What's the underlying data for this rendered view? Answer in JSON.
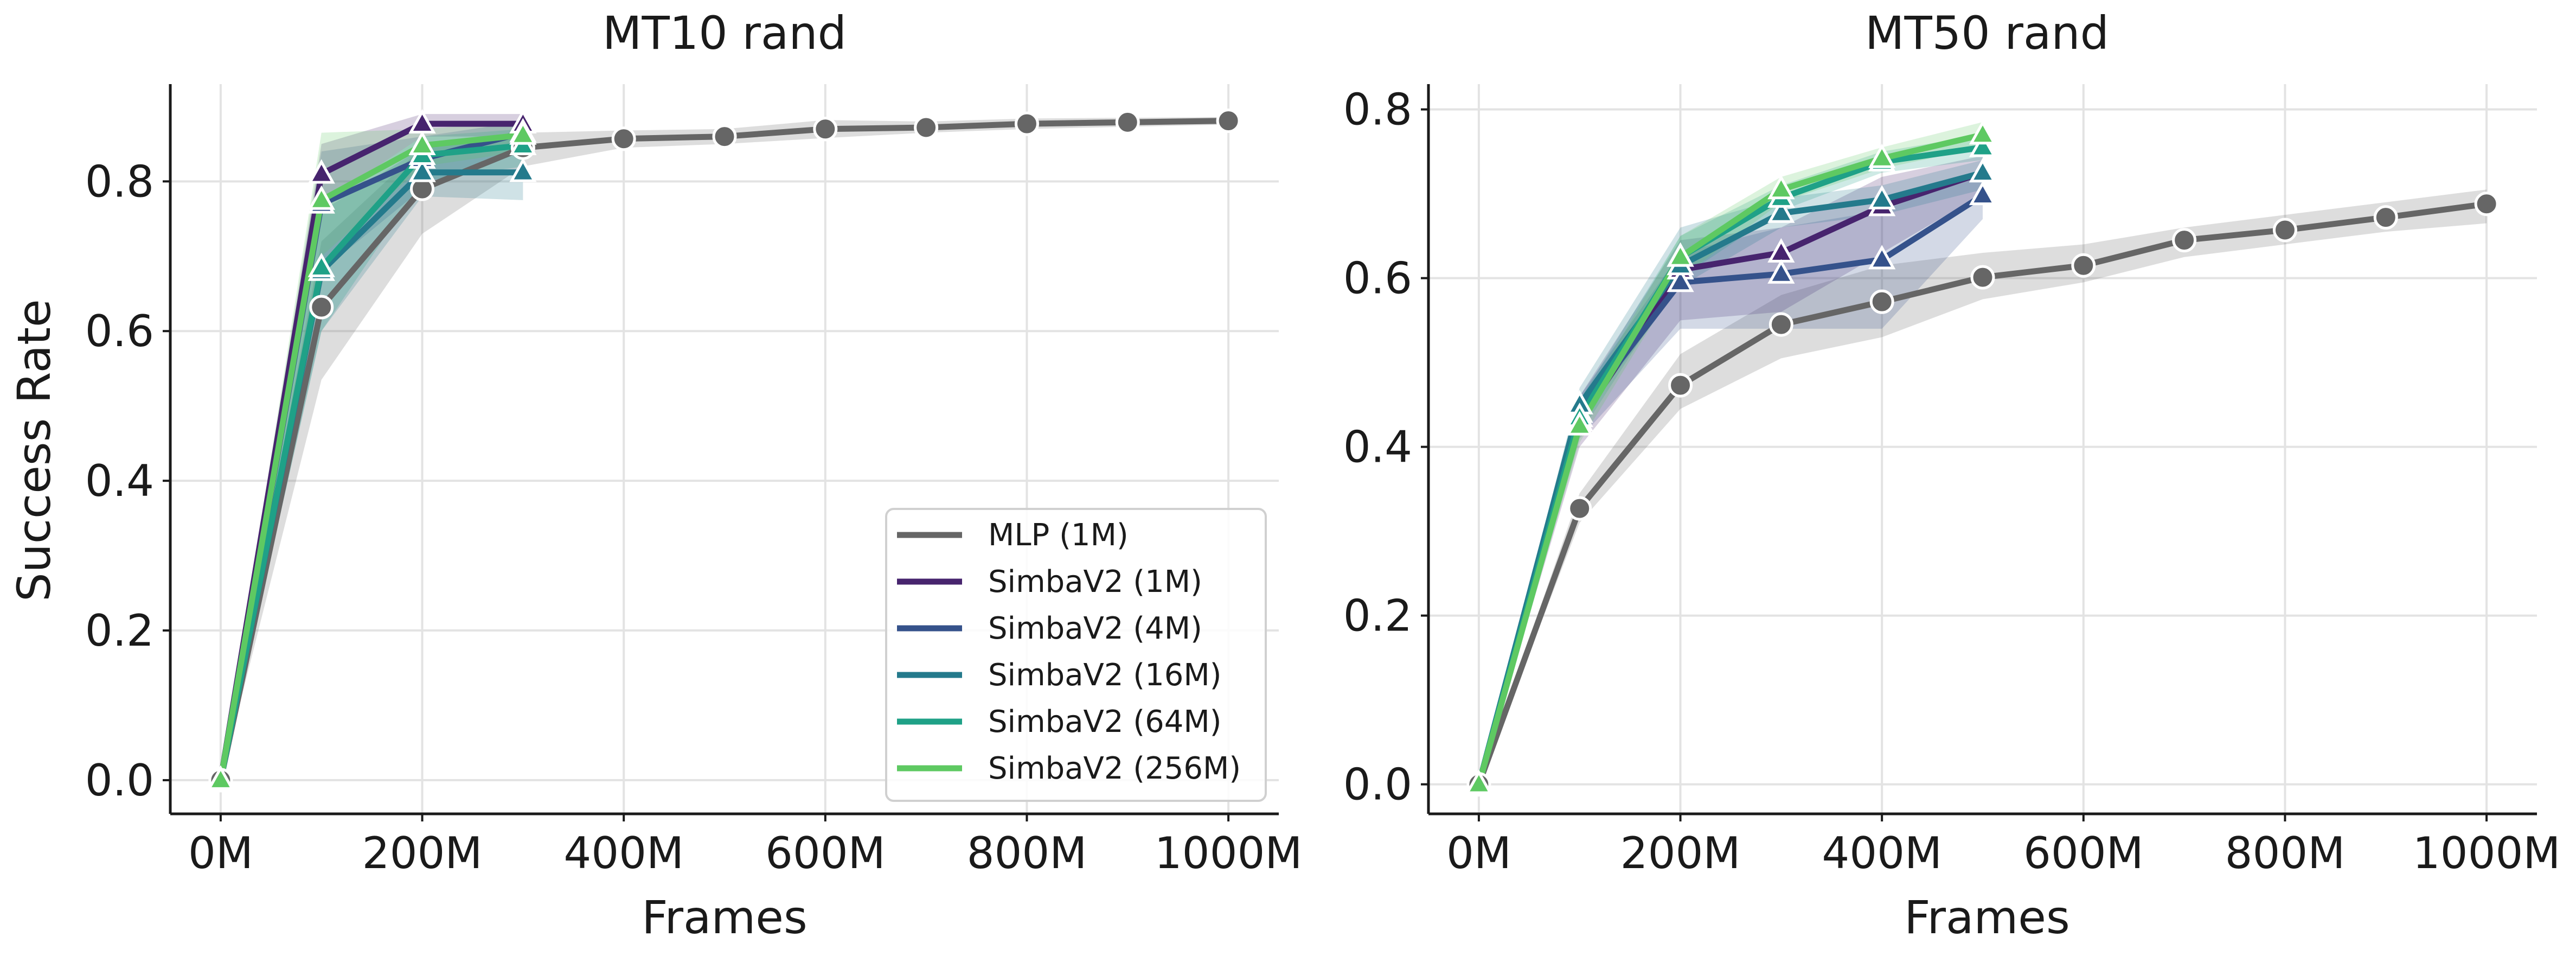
{
  "figure": {
    "ylabel": "Success Rate",
    "xlabel": "Frames"
  },
  "colors": {
    "mlp": "#666666",
    "simba_1m": "#47246e",
    "simba_4m": "#35528b",
    "simba_16m": "#247a8c",
    "simba_64m": "#1fa187",
    "simba_256m": "#5ec962"
  },
  "chart_data": [
    {
      "type": "line",
      "title": "MT10 rand",
      "xlabel": "Frames",
      "ylabel": "Success Rate",
      "xlim": [
        -50,
        1050
      ],
      "ylim": [
        -0.045,
        0.93
      ],
      "xticks": [
        0,
        200,
        400,
        600,
        800,
        1000
      ],
      "xtick_labels": [
        "0M",
        "200M",
        "400M",
        "600M",
        "800M",
        "1000M"
      ],
      "yticks": [
        0.0,
        0.2,
        0.4,
        0.6,
        0.8
      ],
      "ytick_labels": [
        "0.0",
        "0.2",
        "0.4",
        "0.6",
        "0.8"
      ],
      "grid": true,
      "legend": "lower-right",
      "series": [
        {
          "name": "MLP (1M)",
          "color_key": "mlp",
          "marker": "circle",
          "x": [
            0,
            100,
            200,
            300,
            400,
            500,
            600,
            700,
            800,
            900,
            1000
          ],
          "y": [
            0.0,
            0.632,
            0.79,
            0.845,
            0.857,
            0.86,
            0.87,
            0.872,
            0.877,
            0.879,
            0.881
          ],
          "lo": [
            0.0,
            0.535,
            0.73,
            0.82,
            0.845,
            0.85,
            0.858,
            0.865,
            0.87,
            0.873,
            0.876
          ],
          "hi": [
            0.0,
            0.72,
            0.845,
            0.865,
            0.868,
            0.87,
            0.882,
            0.88,
            0.884,
            0.885,
            0.886
          ]
        },
        {
          "name": "SimbaV2 (1M)",
          "color_key": "simba_1m",
          "marker": "triangle",
          "x": [
            0,
            100,
            200,
            300
          ],
          "y": [
            0.0,
            0.81,
            0.877,
            0.877
          ],
          "lo": [
            0.0,
            0.77,
            0.86,
            0.86
          ],
          "hi": [
            0.0,
            0.85,
            0.89,
            0.89
          ]
        },
        {
          "name": "SimbaV2 (4M)",
          "color_key": "simba_4m",
          "marker": "triangle",
          "x": [
            0,
            100,
            200,
            300
          ],
          "y": [
            0.0,
            0.77,
            0.83,
            0.865
          ],
          "lo": [
            0.0,
            0.68,
            0.79,
            0.84
          ],
          "hi": [
            0.0,
            0.84,
            0.86,
            0.88
          ]
        },
        {
          "name": "SimbaV2 (16M)",
          "color_key": "simba_16m",
          "marker": "triangle",
          "x": [
            0,
            100,
            200,
            300
          ],
          "y": [
            0.0,
            0.68,
            0.812,
            0.812
          ],
          "lo": [
            0.0,
            0.6,
            0.78,
            0.775
          ],
          "hi": [
            0.0,
            0.76,
            0.845,
            0.86
          ]
        },
        {
          "name": "SimbaV2 (64M)",
          "color_key": "simba_64m",
          "marker": "triangle",
          "x": [
            0,
            100,
            200,
            300
          ],
          "y": [
            0.0,
            0.685,
            0.835,
            0.848
          ],
          "lo": [
            0.0,
            0.6,
            0.8,
            0.82
          ],
          "hi": [
            0.0,
            0.77,
            0.86,
            0.87
          ]
        },
        {
          "name": "SimbaV2 (256M)",
          "color_key": "simba_256m",
          "marker": "triangle",
          "x": [
            0,
            100,
            200,
            300
          ],
          "y": [
            0.0,
            0.775,
            0.848,
            0.862
          ],
          "lo": [
            0.0,
            0.7,
            0.82,
            0.84
          ],
          "hi": [
            0.0,
            0.865,
            0.87,
            0.88
          ]
        }
      ]
    },
    {
      "type": "line",
      "title": "MT50 rand",
      "xlabel": "Frames",
      "ylabel": "",
      "xlim": [
        -50,
        1050
      ],
      "ylim": [
        -0.035,
        0.83
      ],
      "xticks": [
        0,
        200,
        400,
        600,
        800,
        1000
      ],
      "xtick_labels": [
        "0M",
        "200M",
        "400M",
        "600M",
        "800M",
        "1000M"
      ],
      "yticks": [
        0.0,
        0.2,
        0.4,
        0.6,
        0.8
      ],
      "ytick_labels": [
        "0.0",
        "0.2",
        "0.4",
        "0.6",
        "0.8"
      ],
      "grid": true,
      "legend": "none",
      "series": [
        {
          "name": "MLP (1M)",
          "color_key": "mlp",
          "marker": "circle",
          "x": [
            0,
            100,
            200,
            300,
            400,
            500,
            600,
            700,
            800,
            900,
            1000
          ],
          "y": [
            0.0,
            0.327,
            0.473,
            0.545,
            0.572,
            0.601,
            0.615,
            0.645,
            0.657,
            0.672,
            0.688
          ],
          "lo": [
            0.0,
            0.31,
            0.445,
            0.505,
            0.53,
            0.575,
            0.595,
            0.625,
            0.64,
            0.655,
            0.665
          ],
          "hi": [
            0.0,
            0.345,
            0.51,
            0.58,
            0.615,
            0.63,
            0.64,
            0.66,
            0.675,
            0.69,
            0.705
          ]
        },
        {
          "name": "SimbaV2 (1M)",
          "color_key": "simba_1m",
          "marker": "triangle",
          "x": [
            0,
            100,
            200,
            300,
            400,
            500
          ],
          "y": [
            0.0,
            0.43,
            0.61,
            0.63,
            0.685,
            0.725
          ],
          "lo": [
            0.0,
            0.4,
            0.55,
            0.56,
            0.63,
            0.7
          ],
          "hi": [
            0.0,
            0.46,
            0.645,
            0.66,
            0.72,
            0.745
          ]
        },
        {
          "name": "SimbaV2 (4M)",
          "color_key": "simba_4m",
          "marker": "triangle",
          "x": [
            0,
            100,
            200,
            300,
            400,
            500
          ],
          "y": [
            0.0,
            0.44,
            0.595,
            0.605,
            0.622,
            0.698
          ],
          "lo": [
            0.0,
            0.41,
            0.54,
            0.54,
            0.54,
            0.67
          ],
          "hi": [
            0.0,
            0.46,
            0.63,
            0.66,
            0.68,
            0.725
          ]
        },
        {
          "name": "SimbaV2 (16M)",
          "color_key": "simba_16m",
          "marker": "triangle",
          "x": [
            0,
            100,
            200,
            300,
            400,
            500
          ],
          "y": [
            0.0,
            0.45,
            0.615,
            0.677,
            0.693,
            0.725
          ],
          "lo": [
            0.0,
            0.43,
            0.59,
            0.66,
            0.675,
            0.705
          ],
          "hi": [
            0.0,
            0.47,
            0.66,
            0.695,
            0.71,
            0.74
          ]
        },
        {
          "name": "SimbaV2 (64M)",
          "color_key": "simba_64m",
          "marker": "triangle",
          "x": [
            0,
            100,
            200,
            300,
            400,
            500
          ],
          "y": [
            0.0,
            0.435,
            0.625,
            0.695,
            0.738,
            0.755
          ],
          "lo": [
            0.0,
            0.415,
            0.6,
            0.68,
            0.725,
            0.74
          ],
          "hi": [
            0.0,
            0.455,
            0.65,
            0.71,
            0.75,
            0.77
          ]
        },
        {
          "name": "SimbaV2 (256M)",
          "color_key": "simba_256m",
          "marker": "triangle",
          "x": [
            0,
            100,
            200,
            300,
            400,
            500
          ],
          "y": [
            0.0,
            0.425,
            0.625,
            0.705,
            0.742,
            0.77
          ],
          "lo": [
            0.0,
            0.405,
            0.6,
            0.69,
            0.73,
            0.755
          ],
          "hi": [
            0.0,
            0.445,
            0.65,
            0.72,
            0.755,
            0.785
          ]
        }
      ]
    }
  ]
}
